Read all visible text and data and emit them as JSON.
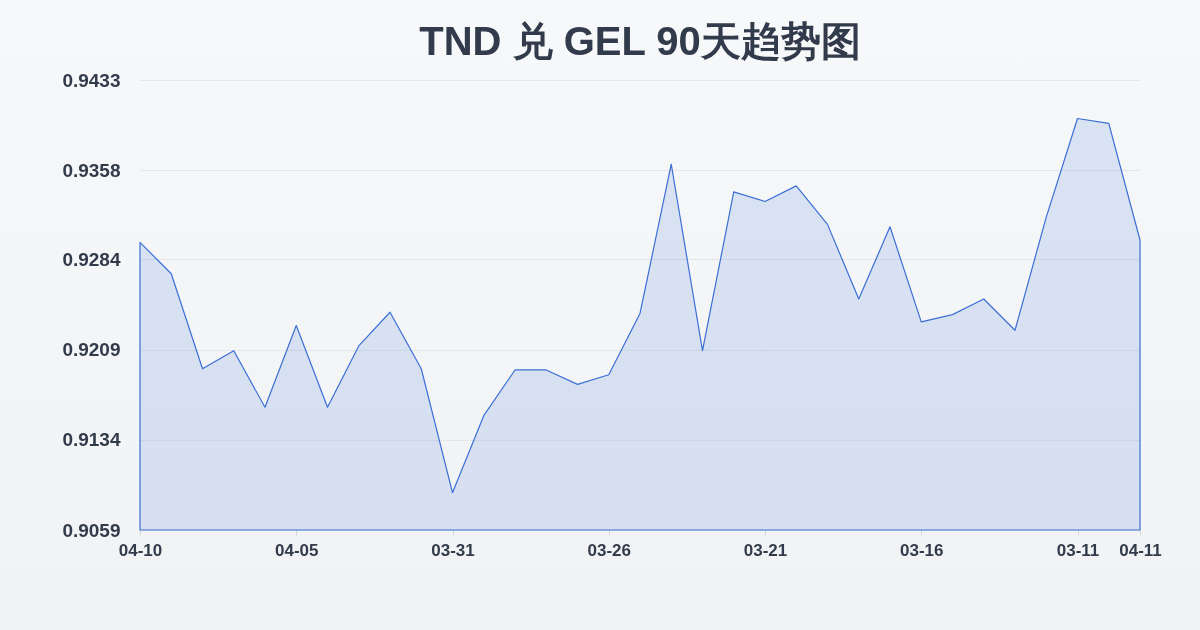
{
  "chart_data": {
    "type": "area",
    "title": "TND 兑 GEL 90天趋势图",
    "categories": [
      "04-10",
      null,
      null,
      null,
      null,
      "04-05",
      null,
      null,
      null,
      null,
      "03-31",
      null,
      null,
      null,
      null,
      "03-26",
      null,
      null,
      null,
      null,
      "03-21",
      null,
      null,
      null,
      null,
      "03-16",
      null,
      null,
      null,
      null,
      "03-11",
      null,
      "04-11"
    ],
    "values": [
      0.9298,
      0.9272,
      0.9193,
      0.9208,
      0.9161,
      0.9229,
      0.9161,
      0.9212,
      0.924,
      0.9193,
      0.909,
      0.9154,
      0.9192,
      0.9192,
      0.918,
      0.9188,
      0.9239,
      0.9363,
      0.9208,
      0.934,
      0.9332,
      0.9345,
      0.9313,
      0.9251,
      0.9311,
      0.9232,
      0.9238,
      0.9251,
      0.9225,
      0.9319,
      0.9401,
      0.9397,
      0.93
    ],
    "color": "#3b6fd4",
    "ylim": [
      0.9059,
      0.9433
    ],
    "yticks": [
      0.9059,
      0.9134,
      0.9209,
      0.9284,
      0.9358,
      0.9433
    ],
    "grid": "y"
  }
}
